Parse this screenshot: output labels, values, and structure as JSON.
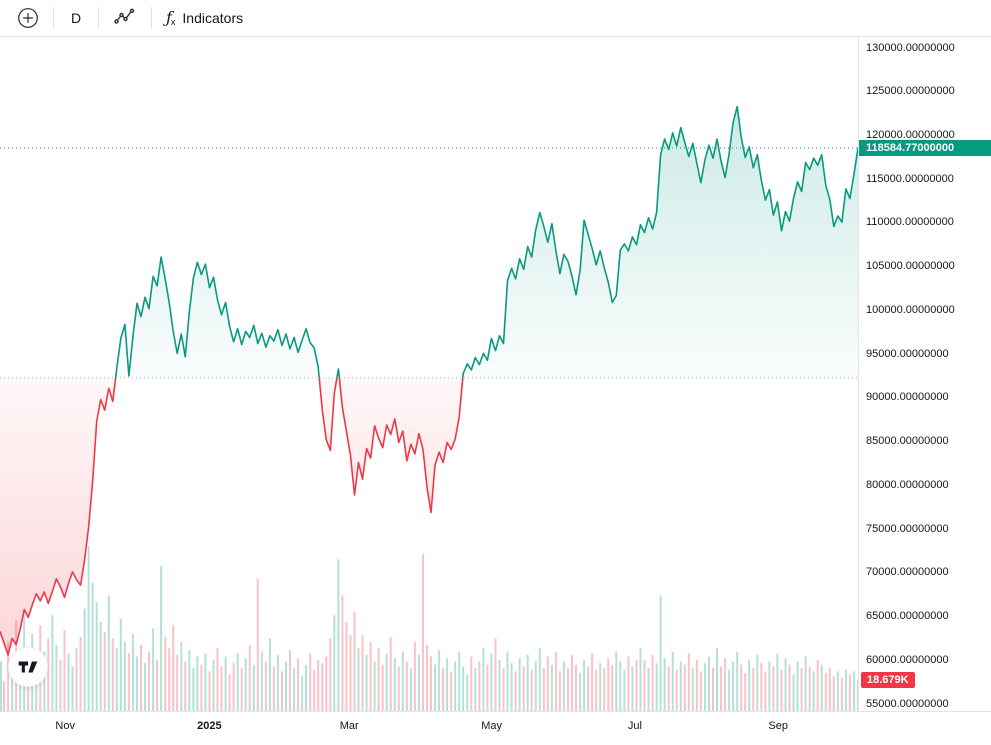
{
  "toolbar": {
    "interval_label": "D",
    "indicators_label": "Indicators",
    "fx_f": "ƒ",
    "fx_x": "x"
  },
  "colors": {
    "up": "#089981",
    "down": "#F23645",
    "axis_text": "#131722",
    "border": "#E0E3EB",
    "toolbar_icon": "#2A2E39",
    "label_text": "#FFFFFF"
  },
  "chart_data": {
    "type": "line",
    "style": "baseline-area",
    "title": "",
    "xlabel": "",
    "ylabel": "",
    "legend": "none",
    "grid": "off",
    "last_price": 118584.77,
    "last_price_label": "118584.77000000",
    "baseline_value": 92300,
    "y_axis": {
      "min": 54200,
      "max": 131260,
      "tick_step": 5000,
      "decimals": 8,
      "ticks": [
        130000,
        125000,
        120000,
        115000,
        110000,
        105000,
        100000,
        95000,
        90000,
        85000,
        80000,
        75000,
        70000,
        65000,
        60000,
        55000
      ]
    },
    "x_axis": {
      "labels": [
        {
          "text": "Nov",
          "pos": 0.076,
          "bold": false
        },
        {
          "text": "2025",
          "pos": 0.244,
          "bold": true
        },
        {
          "text": "Mar",
          "pos": 0.407,
          "bold": false
        },
        {
          "text": "May",
          "pos": 0.573,
          "bold": false
        },
        {
          "text": "Jul",
          "pos": 0.74,
          "bold": false
        },
        {
          "text": "Sep",
          "pos": 0.907,
          "bold": false
        }
      ]
    },
    "series": [
      {
        "name": "price",
        "values": [
          63300,
          62000,
          60600,
          62500,
          61800,
          63500,
          65800,
          64900,
          66300,
          67600,
          66800,
          67800,
          66500,
          67900,
          69300,
          68400,
          67200,
          68800,
          70100,
          69200,
          68600,
          71500,
          75200,
          80400,
          87300,
          89800,
          88600,
          91100,
          89600,
          93400,
          96800,
          98400,
          92500,
          97000,
          100800,
          99300,
          101500,
          100200,
          103900,
          102800,
          106100,
          103600,
          100900,
          97600,
          95100,
          97300,
          94700,
          99800,
          103700,
          105500,
          104100,
          105300,
          102600,
          103800,
          101200,
          99500,
          100900,
          98200,
          96400,
          97900,
          96100,
          97600,
          96900,
          98300,
          96200,
          97400,
          95800,
          97100,
          96500,
          97800,
          96000,
          97300,
          95600,
          96900,
          95200,
          96600,
          97900,
          96300,
          95700,
          93500,
          88600,
          85200,
          84000,
          90500,
          93300,
          88900,
          86200,
          83400,
          78900,
          82600,
          80700,
          84200,
          83100,
          86800,
          85400,
          84300,
          86900,
          85800,
          87600,
          84900,
          86200,
          82800,
          84700,
          83600,
          85900,
          84100,
          79800,
          76900,
          82300,
          83800,
          82600,
          84900,
          84100,
          85300,
          87800,
          92800,
          93900,
          93200,
          94600,
          93800,
          95100,
          94300,
          96800,
          95400,
          97100,
          96200,
          103400,
          104800,
          103600,
          105900,
          104700,
          107300,
          106100,
          109200,
          111200,
          109600,
          107800,
          109900,
          106800,
          104200,
          106400,
          105600,
          103900,
          101800,
          104600,
          110300,
          108700,
          107100,
          105200,
          106800,
          104900,
          103200,
          100900,
          101700,
          106900,
          107600,
          106800,
          108400,
          107500,
          109800,
          108900,
          110600,
          109300,
          111200,
          117800,
          119600,
          118400,
          120300,
          118800,
          120900,
          119200,
          117600,
          119100,
          116800,
          114600,
          117200,
          118900,
          117400,
          119600,
          117100,
          115200,
          117900,
          121500,
          123300,
          119800,
          117500,
          118700,
          116300,
          117800,
          114900,
          112600,
          113800,
          110900,
          112400,
          109100,
          111300,
          110200,
          112800,
          114700,
          113600,
          116900,
          116100,
          117400,
          116600,
          117800,
          114300,
          112700,
          109600,
          110800,
          110100,
          113900,
          112800,
          115600,
          118584.77
        ]
      }
    ],
    "volume": {
      "unit": "K",
      "scale_max": 100,
      "last_label": "18.679K",
      "values": [
        30,
        18,
        42,
        25,
        55,
        38,
        60,
        33,
        47,
        28,
        52,
        36,
        44,
        58,
        40,
        31,
        49,
        35,
        27,
        38,
        45,
        62,
        100,
        78,
        66,
        54,
        48,
        70,
        44,
        38,
        56,
        42,
        35,
        47,
        33,
        40,
        29,
        36,
        50,
        31,
        88,
        45,
        38,
        52,
        34,
        42,
        30,
        37,
        26,
        33,
        28,
        35,
        24,
        31,
        38,
        27,
        33,
        22,
        29,
        35,
        26,
        32,
        40,
        28,
        80,
        36,
        30,
        44,
        27,
        34,
        24,
        30,
        37,
        26,
        32,
        21,
        28,
        35,
        25,
        31,
        29,
        33,
        44,
        58,
        92,
        70,
        54,
        46,
        60,
        38,
        46,
        34,
        42,
        30,
        38,
        28,
        35,
        45,
        32,
        27,
        36,
        30,
        26,
        42,
        34,
        95,
        40,
        33,
        28,
        37,
        26,
        32,
        24,
        30,
        36,
        27,
        22,
        33,
        26,
        30,
        38,
        28,
        35,
        44,
        31,
        26,
        36,
        29,
        24,
        32,
        27,
        34,
        25,
        30,
        38,
        26,
        33,
        28,
        36,
        24,
        30,
        26,
        34,
        28,
        23,
        31,
        27,
        35,
        25,
        29,
        26,
        32,
        28,
        36,
        30,
        25,
        33,
        27,
        31,
        38,
        31,
        26,
        34,
        29,
        70,
        32,
        27,
        36,
        25,
        30,
        28,
        35,
        26,
        31,
        24,
        29,
        33,
        26,
        38,
        27,
        32,
        25,
        30,
        36,
        28,
        23,
        31,
        26,
        34,
        29,
        24,
        30,
        27,
        35,
        25,
        32,
        28,
        22,
        30,
        26,
        33,
        27,
        24,
        31,
        28,
        23,
        26,
        21,
        24,
        20,
        25,
        22,
        24,
        19
      ]
    }
  },
  "logo": {
    "name": "TradingView"
  }
}
